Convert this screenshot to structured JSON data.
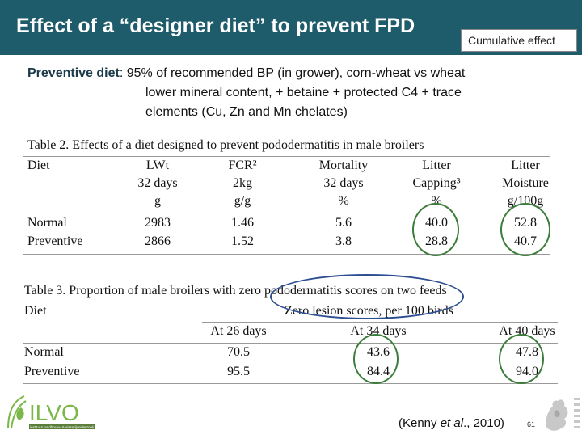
{
  "title": "Effect of a “designer diet” to prevent FPD",
  "cumulative_label": "Cumulative effect",
  "description": {
    "label": "Preventive diet",
    "line1": ": 95% of recommended  BP (in grower), corn-wheat vs wheat",
    "line2": "lower mineral content, + betaine + protected C4 + trace",
    "line3": "elements (Cu, Zn and Mn chelates)"
  },
  "table2": {
    "caption": "Table 2. Effects of a diet designed to prevent pododermatitis in male broilers",
    "headers": [
      {
        "l1": "Diet",
        "l2": "",
        "l3": ""
      },
      {
        "l1": "LWt",
        "l2": "32 days",
        "l3": "g"
      },
      {
        "l1": "FCR²",
        "l2": "2kg",
        "l3": "g/g"
      },
      {
        "l1": "Mortality",
        "l2": "32 days",
        "l3": "%"
      },
      {
        "l1": "Litter",
        "l2": "Capping³",
        "l3": "%"
      },
      {
        "l1": "Litter",
        "l2": "Moisture",
        "l3": "g/100g"
      }
    ],
    "rows": [
      [
        "Normal",
        "2983",
        "1.46",
        "5.6",
        "40.0",
        "52.8"
      ],
      [
        "Preventive",
        "2866",
        "1.52",
        "3.8",
        "28.8",
        "40.7"
      ]
    ]
  },
  "table3": {
    "caption": "Table 3. Proportion of male broilers with zero pododermatitis scores on two feeds",
    "col1": "Diet",
    "group_header": "Zero lesion scores, per 100 birds",
    "subheaders": [
      "At 26 days",
      "At 34 days",
      "At 40 days"
    ],
    "rows": [
      [
        "Normal",
        "70.5",
        "43.6",
        "47.8"
      ],
      [
        "Preventive",
        "95.5",
        "84.4",
        "94.0"
      ]
    ]
  },
  "logo": {
    "text": "ILVO",
    "tagline": "instituut landbouw- & visserijonderzoek"
  },
  "citation": {
    "prefix": "(Kenny ",
    "etal": "et al",
    "suffix": "., 2010)"
  },
  "page_number": "61",
  "colors": {
    "title_bar": "#1f5c6b",
    "highlight_oval": "#3c7d3c",
    "zero_oval": "#2e4e92",
    "logo_green": "#7ab648"
  }
}
